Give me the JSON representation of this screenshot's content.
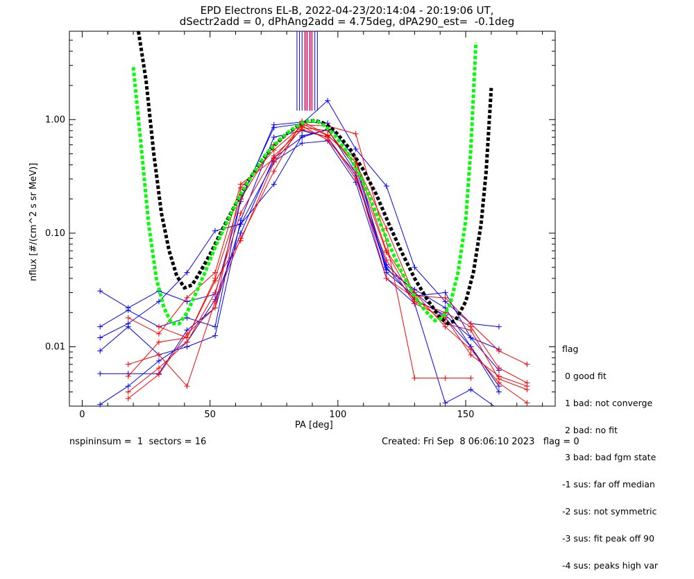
{
  "chart_data": {
    "type": "line",
    "title_lines": [
      "EPD Electrons EL-B, 2022-04-23/20:14:04 - 20:19:06 UT,",
      "dSectr2add = 0, dPhAng2add = 4.75deg, dPA290_est=  -0.1deg"
    ],
    "xlabel": "PA [deg]",
    "ylabel": "nflux [#/(cm^2 s sr MeV)]",
    "xlim": [
      -5,
      185
    ],
    "ylim": [
      0.003,
      6.0
    ],
    "yscale": "log",
    "xticks": [
      0,
      50,
      100,
      150
    ],
    "yticks": [
      {
        "value": 0.01,
        "label": "0.01"
      },
      {
        "value": 0.1,
        "label": "0.10"
      },
      {
        "value": 1.0,
        "label": "1.00"
      }
    ],
    "series": [
      {
        "color": "#0000ff",
        "points": [
          [
            7,
            0.031
          ],
          [
            18,
            0.022
          ],
          [
            30,
            0.031
          ],
          [
            41,
            0.025
          ],
          [
            52,
            0.029
          ],
          [
            62,
            0.19
          ],
          [
            75,
            0.9
          ],
          [
            86,
            0.95
          ],
          [
            96,
            0.93
          ],
          [
            107,
            0.45
          ],
          [
            119,
            0.045
          ],
          [
            130,
            0.028
          ],
          [
            142,
            0.03
          ],
          [
            152,
            0.012
          ],
          [
            163,
            0.0095
          ]
        ]
      },
      {
        "color": "#0000ff",
        "points": [
          [
            7,
            0.015
          ],
          [
            18,
            0.021
          ],
          [
            30,
            0.015
          ],
          [
            41,
            0.018
          ],
          [
            52,
            0.015
          ],
          [
            62,
            0.2
          ],
          [
            75,
            0.85
          ],
          [
            86,
            0.92
          ],
          [
            96,
            1.47
          ],
          [
            107,
            0.55
          ],
          [
            119,
            0.26
          ],
          [
            130,
            0.05
          ],
          [
            142,
            0.025
          ],
          [
            152,
            0.016
          ],
          [
            163,
            0.015
          ]
        ]
      },
      {
        "color": "#0000ff",
        "points": [
          [
            7,
            0.012
          ],
          [
            18,
            0.016
          ],
          [
            30,
            0.025
          ],
          [
            41,
            0.045
          ],
          [
            52,
            0.105
          ],
          [
            62,
            0.12
          ],
          [
            75,
            0.27
          ],
          [
            86,
            0.72
          ],
          [
            96,
            0.81
          ],
          [
            107,
            0.38
          ],
          [
            119,
            0.053
          ],
          [
            130,
            0.03
          ],
          [
            142,
            0.018
          ],
          [
            152,
            0.01
          ],
          [
            163,
            0.004
          ]
        ]
      },
      {
        "color": "#0000ff",
        "points": [
          [
            7,
            0.0092
          ],
          [
            18,
            0.015
          ],
          [
            30,
            0.0085
          ],
          [
            41,
            0.01
          ],
          [
            52,
            0.0125
          ],
          [
            62,
            0.13
          ],
          [
            75,
            0.7
          ],
          [
            86,
            0.8
          ],
          [
            96,
            0.7
          ],
          [
            107,
            0.32
          ],
          [
            119,
            0.048
          ],
          [
            130,
            0.032
          ],
          [
            142,
            0.022
          ],
          [
            152,
            0.01
          ],
          [
            163,
            0.0045
          ]
        ]
      },
      {
        "color": "#0000ff",
        "points": [
          [
            7,
            0.0058
          ],
          [
            18,
            0.0058
          ],
          [
            30,
            0.0058
          ],
          [
            41,
            0.014
          ],
          [
            52,
            0.022
          ],
          [
            62,
            0.12
          ],
          [
            75,
            0.43
          ],
          [
            86,
            0.62
          ],
          [
            96,
            0.65
          ],
          [
            107,
            0.28
          ],
          [
            119,
            0.04
          ],
          [
            130,
            0.024
          ],
          [
            142,
            0.0032
          ],
          [
            152,
            0.0042
          ],
          [
            163,
            0.0028
          ]
        ]
      },
      {
        "color": "#0000ff",
        "points": [
          [
            7,
            0.0031
          ],
          [
            18,
            0.0045
          ],
          [
            30,
            0.0075
          ],
          [
            41,
            0.011
          ],
          [
            52,
            0.026
          ],
          [
            62,
            0.1
          ],
          [
            75,
            0.46
          ],
          [
            86,
            0.7
          ],
          [
            96,
            0.82
          ],
          [
            107,
            0.34
          ],
          [
            119,
            0.05
          ],
          [
            130,
            0.026
          ],
          [
            142,
            0.019
          ],
          [
            152,
            0.012
          ],
          [
            163,
            0.0062
          ]
        ]
      },
      {
        "color": "#ff0000",
        "points": [
          [
            18,
            0.018
          ],
          [
            30,
            0.013
          ],
          [
            41,
            0.027
          ],
          [
            52,
            0.045
          ],
          [
            62,
            0.27
          ],
          [
            75,
            0.45
          ],
          [
            86,
            0.9
          ],
          [
            96,
            0.88
          ],
          [
            107,
            0.75
          ],
          [
            119,
            0.085
          ],
          [
            130,
            0.0053
          ],
          [
            142,
            0.0053
          ],
          [
            152,
            0.0053
          ]
        ]
      },
      {
        "color": "#ff0000",
        "points": [
          [
            18,
            0.007
          ],
          [
            30,
            0.0085
          ],
          [
            41,
            0.0045
          ],
          [
            52,
            0.025
          ],
          [
            62,
            0.09
          ],
          [
            75,
            0.35
          ],
          [
            86,
            0.97
          ],
          [
            96,
            0.73
          ],
          [
            107,
            0.42
          ],
          [
            119,
            0.11
          ],
          [
            130,
            0.028
          ],
          [
            142,
            0.027
          ],
          [
            152,
            0.016
          ],
          [
            163,
            0.0092
          ],
          [
            174,
            0.007
          ]
        ]
      },
      {
        "color": "#ff0000",
        "points": [
          [
            18,
            0.0055
          ],
          [
            30,
            0.011
          ],
          [
            41,
            0.012
          ],
          [
            52,
            0.038
          ],
          [
            62,
            0.086
          ],
          [
            75,
            0.42
          ],
          [
            86,
            0.85
          ],
          [
            96,
            0.8
          ],
          [
            107,
            0.38
          ],
          [
            119,
            0.068
          ],
          [
            130,
            0.025
          ],
          [
            142,
            0.02
          ],
          [
            152,
            0.015
          ],
          [
            163,
            0.0065
          ],
          [
            174,
            0.0048
          ]
        ]
      },
      {
        "color": "#ff0000",
        "points": [
          [
            18,
            0.004
          ],
          [
            30,
            0.0065
          ],
          [
            41,
            0.011
          ],
          [
            52,
            0.03
          ],
          [
            62,
            0.15
          ],
          [
            75,
            0.48
          ],
          [
            86,
            0.82
          ],
          [
            96,
            0.7
          ],
          [
            107,
            0.3
          ],
          [
            119,
            0.058
          ],
          [
            130,
            0.024
          ],
          [
            142,
            0.018
          ],
          [
            152,
            0.0085
          ],
          [
            163,
            0.0055
          ],
          [
            174,
            0.0045
          ]
        ]
      },
      {
        "color": "#ff0000",
        "points": [
          [
            18,
            0.0035
          ],
          [
            30,
            0.0057
          ],
          [
            41,
            0.013
          ],
          [
            52,
            0.022
          ],
          [
            62,
            0.25
          ],
          [
            75,
            0.54
          ],
          [
            86,
            0.88
          ],
          [
            96,
            0.66
          ],
          [
            107,
            0.34
          ],
          [
            119,
            0.04
          ],
          [
            130,
            0.027
          ],
          [
            142,
            0.016
          ],
          [
            152,
            0.014
          ],
          [
            163,
            0.0052
          ],
          [
            174,
            0.0042
          ]
        ]
      },
      {
        "color": "#ff0000",
        "points": [
          [
            30,
            0.015
          ],
          [
            41,
            0.012
          ],
          [
            52,
            0.04
          ],
          [
            62,
            0.2
          ],
          [
            75,
            0.6
          ],
          [
            86,
            0.92
          ],
          [
            96,
            0.72
          ],
          [
            107,
            0.45
          ],
          [
            119,
            0.07
          ],
          [
            130,
            0.03
          ],
          [
            142,
            0.015
          ],
          [
            152,
            0.0095
          ],
          [
            163,
            0.0048
          ],
          [
            174,
            0.0032
          ]
        ]
      }
    ],
    "fit_curves": [
      {
        "name": "",
        "color": "#000000",
        "points": [
          [
            22,
            6.0
          ],
          [
            25,
            2.2
          ],
          [
            28,
            0.5
          ],
          [
            31,
            0.15
          ],
          [
            34,
            0.07
          ],
          [
            37,
            0.042
          ],
          [
            40,
            0.033
          ],
          [
            43,
            0.035
          ],
          [
            46,
            0.045
          ],
          [
            50,
            0.065
          ],
          [
            55,
            0.11
          ],
          [
            60,
            0.18
          ],
          [
            65,
            0.29
          ],
          [
            70,
            0.43
          ],
          [
            75,
            0.59
          ],
          [
            80,
            0.75
          ],
          [
            85,
            0.9
          ],
          [
            88,
            0.97
          ],
          [
            91,
            0.98
          ],
          [
            94,
            0.94
          ],
          [
            97,
            0.86
          ],
          [
            100,
            0.74
          ],
          [
            105,
            0.54
          ],
          [
            110,
            0.36
          ],
          [
            115,
            0.22
          ],
          [
            120,
            0.12
          ],
          [
            125,
            0.068
          ],
          [
            130,
            0.04
          ],
          [
            135,
            0.026
          ],
          [
            140,
            0.018
          ],
          [
            143,
            0.016
          ],
          [
            146,
            0.017
          ],
          [
            150,
            0.025
          ],
          [
            153,
            0.045
          ],
          [
            156,
            0.12
          ],
          [
            158,
            0.35
          ],
          [
            160,
            1.9
          ]
        ]
      },
      {
        "name": "",
        "color": "#00ff00",
        "points": [
          [
            20,
            2.9
          ],
          [
            23,
            0.6
          ],
          [
            26,
            0.12
          ],
          [
            29,
            0.04
          ],
          [
            32,
            0.022
          ],
          [
            35,
            0.016
          ],
          [
            38,
            0.016
          ],
          [
            41,
            0.02
          ],
          [
            44,
            0.028
          ],
          [
            48,
            0.045
          ],
          [
            52,
            0.075
          ],
          [
            57,
            0.13
          ],
          [
            62,
            0.22
          ],
          [
            67,
            0.34
          ],
          [
            72,
            0.5
          ],
          [
            77,
            0.66
          ],
          [
            82,
            0.82
          ],
          [
            86,
            0.93
          ],
          [
            89,
            0.98
          ],
          [
            92,
            0.96
          ],
          [
            95,
            0.88
          ],
          [
            99,
            0.72
          ],
          [
            104,
            0.5
          ],
          [
            109,
            0.31
          ],
          [
            114,
            0.17
          ],
          [
            119,
            0.09
          ],
          [
            124,
            0.05
          ],
          [
            129,
            0.03
          ],
          [
            134,
            0.021
          ],
          [
            138,
            0.017
          ],
          [
            141,
            0.018
          ],
          [
            144,
            0.024
          ],
          [
            147,
            0.045
          ],
          [
            150,
            0.13
          ],
          [
            152,
            0.55
          ],
          [
            154,
            4.8
          ]
        ]
      }
    ],
    "peak_markers": [
      {
        "color": "#0000ff",
        "x": [
          84,
          85,
          86,
          87,
          88,
          89,
          90,
          91,
          92
        ]
      },
      {
        "color": "#ff0000",
        "x": [
          87,
          88,
          89,
          90
        ]
      },
      {
        "color": "#a000c0",
        "x": [
          87.5,
          89.5
        ]
      }
    ]
  },
  "legend": {
    "title": "flag",
    "items": [
      " 0 good fit",
      " 1 bad: not converge",
      " 2 bad: no fit",
      " 3 bad: bad fgm state",
      "-1 sus: far off median",
      "-2 sus: not symmetric",
      "-3 sus: fit peak off 90",
      "-4 sus: peaks high var"
    ]
  },
  "footer": {
    "left": "nspininsum =  1  sectors = 16",
    "right": "Created: Fri Sep  8 06:06:10 2023   flag = 0"
  }
}
